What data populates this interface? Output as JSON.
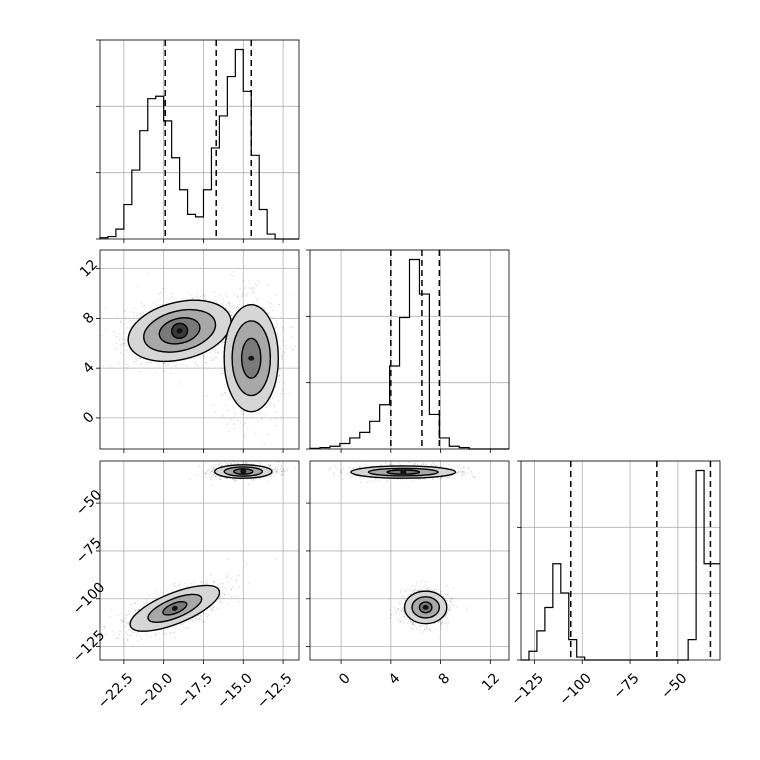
{
  "chart_data": {
    "type": "corner",
    "grid": true,
    "parameters": [
      {
        "range": [
          -24.0,
          -11.5
        ],
        "ticks": [
          -22.5,
          -20.0,
          -17.5,
          -15.0,
          -12.5
        ],
        "tick_labels": [
          "−22.5",
          "−20.0",
          "−17.5",
          "−15.0",
          "−12.5"
        ],
        "quantiles": [
          -19.9,
          -16.7,
          -14.5
        ]
      },
      {
        "range": [
          -2.5,
          13.5
        ],
        "ticks": [
          0,
          4,
          8,
          12
        ],
        "tick_labels": [
          "0",
          "4",
          "8",
          "12"
        ],
        "quantiles": [
          4.0,
          6.5,
          7.9
        ]
      },
      {
        "range": [
          -132,
          -28
        ],
        "ticks": [
          -125,
          -100,
          -75,
          -50
        ],
        "tick_labels": [
          "−125",
          "−100",
          "−75",
          "−50"
        ],
        "quantiles": [
          -106,
          -61,
          -33
        ]
      }
    ],
    "histograms": [
      {
        "param": 0,
        "edges_start": -24.0,
        "bin_width": 0.5,
        "counts": [
          0.5,
          1,
          4,
          14,
          28,
          44,
          57,
          58,
          48,
          33,
          20,
          10,
          9,
          20,
          37,
          50,
          66,
          77,
          60,
          34,
          12,
          2,
          0,
          0,
          0
        ]
      },
      {
        "param": 1,
        "edges_start": -2.5,
        "bin_width": 0.8,
        "counts": [
          0.5,
          1,
          2,
          4,
          8,
          12,
          20,
          32,
          60,
          95,
          137,
          112,
          25,
          8,
          2,
          1,
          0,
          0,
          0,
          0
        ]
      },
      {
        "param": 2,
        "edges_start": -132,
        "bin_width": 4.16,
        "counts": [
          0,
          3,
          10,
          18,
          33,
          23,
          7,
          1,
          0,
          0,
          0,
          0,
          0,
          0,
          0,
          0,
          0,
          0,
          0,
          0,
          0,
          7,
          65,
          33,
          33
        ]
      }
    ],
    "density_clusters": [
      {
        "pair": [
          0,
          1
        ],
        "center": [
          -19.0,
          7.0
        ],
        "level_half_widths": [
          [
            3.3,
            2.3
          ],
          [
            2.3,
            1.6
          ],
          [
            1.3,
            1.0
          ],
          [
            0.5,
            0.6
          ]
        ],
        "rotation_deg": -14
      },
      {
        "pair": [
          0,
          1
        ],
        "center": [
          -14.5,
          4.8
        ],
        "level_half_widths": [
          [
            1.7,
            4.3
          ],
          [
            1.2,
            3.0
          ],
          [
            0.6,
            1.6
          ]
        ],
        "rotation_deg": 0
      },
      {
        "pair": [
          0,
          2
        ],
        "center": [
          -15.0,
          -33.5
        ],
        "level_half_widths": [
          [
            1.8,
            3.5
          ],
          [
            1.2,
            2.4
          ],
          [
            0.6,
            1.4
          ]
        ],
        "rotation_deg": 0
      },
      {
        "pair": [
          0,
          2
        ],
        "center": [
          -19.3,
          -105.0
        ],
        "level_half_widths": [
          [
            3.0,
            8.0
          ],
          [
            1.8,
            5.0
          ],
          [
            0.8,
            2.6
          ]
        ],
        "rotation_deg": -22
      },
      {
        "pair": [
          1,
          2
        ],
        "center": [
          5.0,
          -33.8
        ],
        "level_half_widths": [
          [
            4.2,
            3.2
          ],
          [
            2.8,
            2.0
          ],
          [
            1.3,
            1.1
          ]
        ],
        "rotation_deg": 0
      },
      {
        "pair": [
          1,
          2
        ],
        "center": [
          6.8,
          -104.5
        ],
        "level_half_widths": [
          [
            1.7,
            8.5
          ],
          [
            1.1,
            5.5
          ],
          [
            0.5,
            2.8
          ]
        ],
        "rotation_deg": 0
      }
    ]
  }
}
